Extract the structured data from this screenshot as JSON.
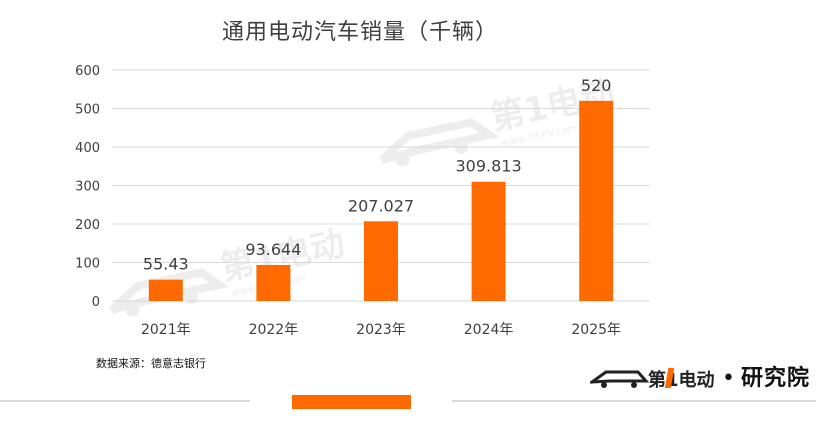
{
  "chart_data": {
    "type": "bar",
    "title": "通用电动汽车销量（千辆）",
    "categories": [
      "2021年",
      "2022年",
      "2023年",
      "2024年",
      "2025年"
    ],
    "values": [
      55.43,
      93.644,
      207.027,
      309.813,
      520
    ],
    "data_labels": [
      "55.43",
      "93.644",
      "207.027",
      "309.813",
      "520"
    ],
    "ylim": [
      0,
      600
    ],
    "yticks": [
      "0",
      "100",
      "200",
      "300",
      "400",
      "500",
      "600"
    ],
    "grid": true,
    "bar_color": "#ff6a00"
  },
  "source": "数据来源：德意志银行",
  "brand": {
    "watermark_text": "第1电动",
    "watermark_url": "www.D1EV.com",
    "logo_text": "研究院",
    "separator": "•"
  },
  "colors": {
    "accent": "#ff6a00",
    "grid": "#d9d9d9",
    "text": "#404040"
  }
}
